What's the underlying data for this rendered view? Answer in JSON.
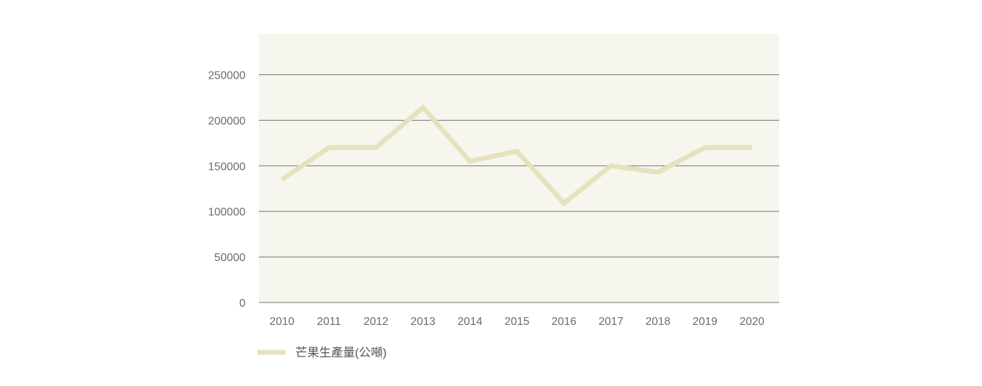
{
  "colors": {
    "plot_background": "#f7f6ee",
    "gridline": "#6e6e6e",
    "series_line": "#e6e2bf",
    "tick_text": "#6b6b6b"
  },
  "chart_data": {
    "type": "line",
    "title": "",
    "xlabel": "",
    "ylabel": "",
    "categories": [
      "2010",
      "2011",
      "2012",
      "2013",
      "2014",
      "2015",
      "2016",
      "2017",
      "2018",
      "2019",
      "2020"
    ],
    "yticks": [
      "0",
      "50000",
      "100000",
      "150000",
      "200000",
      "250000"
    ],
    "ylim": [
      0,
      295000
    ],
    "grid": true,
    "legend_position": "bottom-left",
    "series": [
      {
        "name": "芒果生產量(公噸)",
        "values": [
          135000,
          170000,
          170000,
          214000,
          155000,
          166000,
          109000,
          150000,
          143000,
          170000,
          170000
        ]
      }
    ]
  }
}
